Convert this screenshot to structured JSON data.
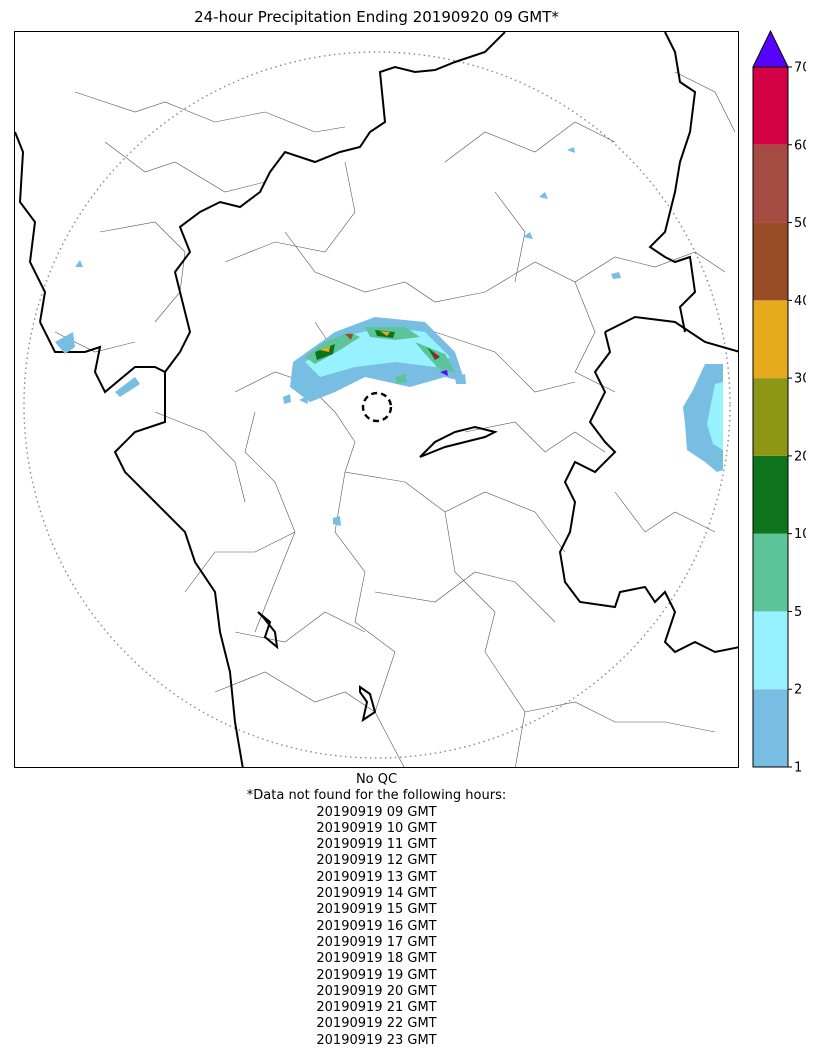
{
  "title": "24-hour Precipitation Ending 20190920 09 GMT*",
  "colorbar": {
    "levels": [
      1,
      2,
      5,
      10,
      20,
      30,
      40,
      50,
      60,
      70
    ],
    "colors": [
      "#78bee3",
      "#98f1ff",
      "#5dc49a",
      "#0e741b",
      "#8d9715",
      "#e7aa1e",
      "#9a4c26",
      "#a54c42",
      "#d40146"
    ],
    "extend_color": "#5604ff",
    "tick_labels": [
      "1",
      "2",
      "5",
      "10",
      "20",
      "30",
      "40",
      "50",
      "60",
      "70"
    ]
  },
  "footer": {
    "qc": "No QC",
    "missing_note": "*Data not found for the following hours:",
    "missing_hours": [
      "20190919 09 GMT",
      "20190919 10 GMT",
      "20190919 11 GMT",
      "20190919 12 GMT",
      "20190919 13 GMT",
      "20190919 14 GMT",
      "20190919 15 GMT",
      "20190919 16 GMT",
      "20190919 17 GMT",
      "20190919 18 GMT",
      "20190919 19 GMT",
      "20190919 20 GMT",
      "20190919 21 GMT",
      "20190919 22 GMT",
      "20190919 23 GMT"
    ]
  }
}
